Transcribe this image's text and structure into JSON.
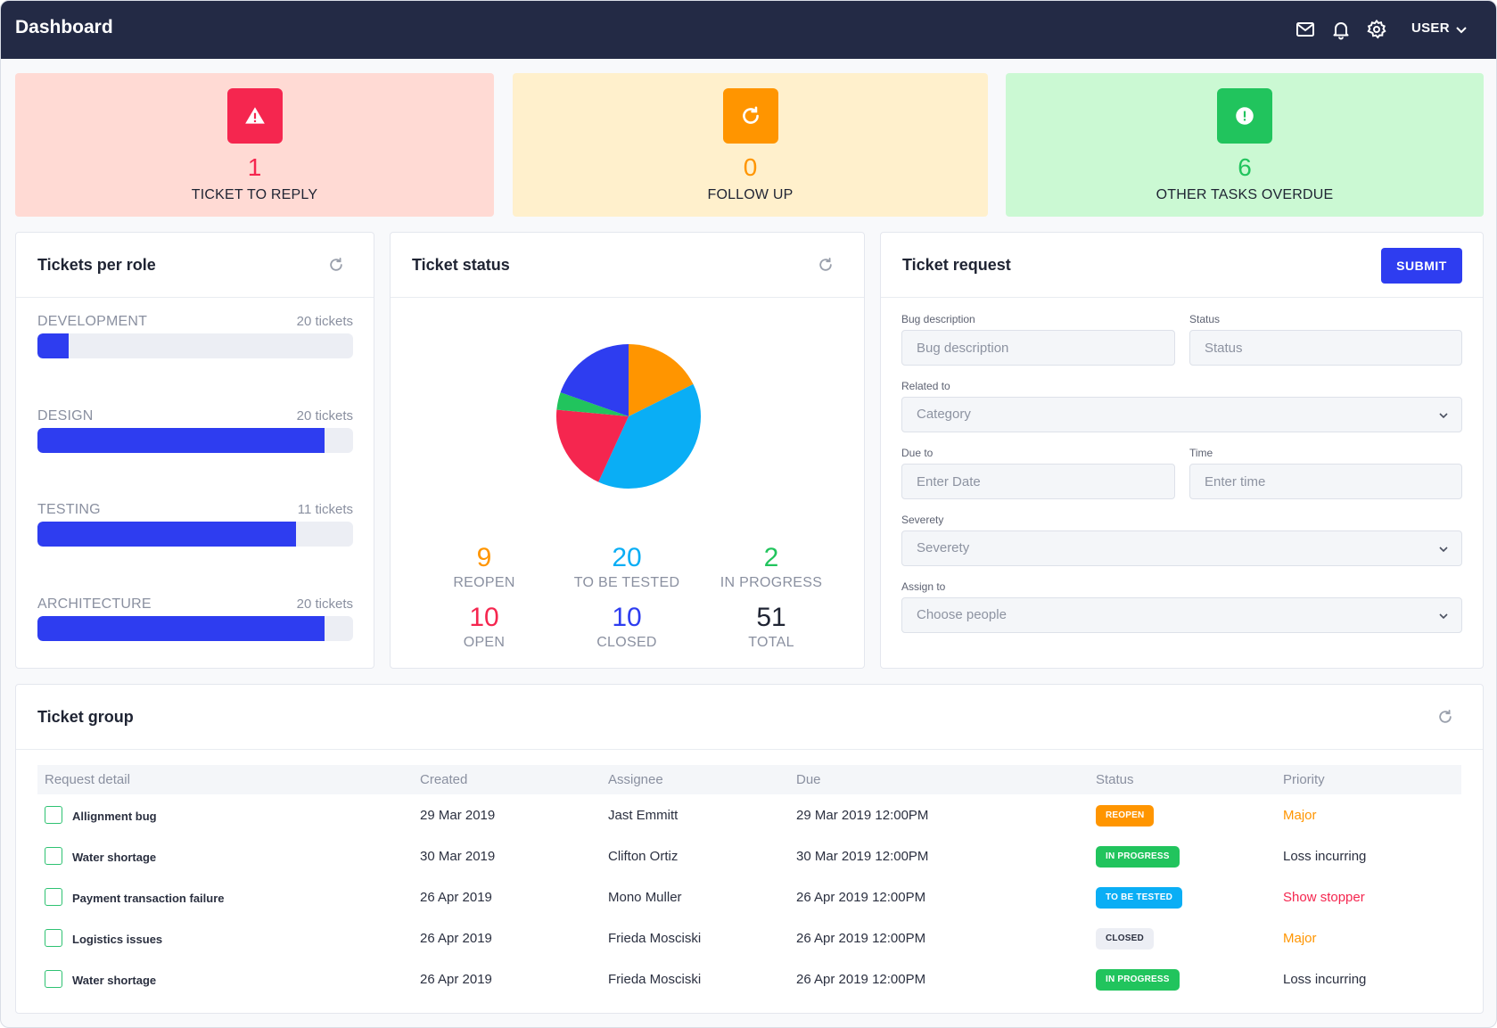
{
  "header": {
    "title": "Dashboard",
    "user_label": "USER"
  },
  "stats": [
    {
      "value": "1",
      "label": "TICKET TO REPLY",
      "icon": "warning-icon",
      "bg": "#ffdad4",
      "accent": "#f5264f"
    },
    {
      "value": "0",
      "label": "FOLLOW UP",
      "icon": "refresh-icon",
      "bg": "#fff0cc",
      "accent": "#ff9500"
    },
    {
      "value": "6",
      "label": "OTHER TASKS OVERDUE",
      "icon": "alert-circle-icon",
      "bg": "#cbf9d3",
      "accent": "#21c45d"
    }
  ],
  "roles_panel": {
    "title": "Tickets per role",
    "items": [
      {
        "name": "DEVELOPMENT",
        "count_label": "20 tickets",
        "fraction": 0.1
      },
      {
        "name": "DESIGN",
        "count_label": "20 tickets",
        "fraction": 0.91
      },
      {
        "name": "TESTING",
        "count_label": "11 tickets",
        "fraction": 0.82
      },
      {
        "name": "ARCHITECTURE",
        "count_label": "20 tickets",
        "fraction": 0.91
      }
    ]
  },
  "status_panel": {
    "title": "Ticket status",
    "items": [
      {
        "value": "9",
        "label": "REOPEN",
        "color": "#ff9500"
      },
      {
        "value": "20",
        "label": "TO BE TESTED",
        "color": "#0aaef5"
      },
      {
        "value": "2",
        "label": "IN PROGRESS",
        "color": "#21c45d"
      },
      {
        "value": "10",
        "label": "OPEN",
        "color": "#f5264f"
      },
      {
        "value": "10",
        "label": "CLOSED",
        "color": "#2e3df0"
      },
      {
        "value": "51",
        "label": "TOTAL",
        "color": "#1f2433"
      }
    ]
  },
  "chart_data": {
    "type": "pie",
    "slices": [
      {
        "label": "REOPEN",
        "value": 9,
        "color": "#ff9500"
      },
      {
        "label": "TO BE TESTED",
        "value": 20,
        "color": "#0aaef5"
      },
      {
        "label": "OPEN",
        "value": 10,
        "color": "#f5264f"
      },
      {
        "label": "IN PROGRESS",
        "value": 2,
        "color": "#21c45d"
      },
      {
        "label": "CLOSED",
        "value": 10,
        "color": "#2e3df0"
      }
    ]
  },
  "request_panel": {
    "title": "Ticket request",
    "submit_label": "SUBMIT",
    "fields": {
      "bug_label": "Bug description",
      "bug_placeholder": "Bug description",
      "status_label": "Status",
      "status_placeholder": "Status",
      "related_label": "Related to",
      "related_value": "Category",
      "due_label": "Due to",
      "due_placeholder": "Enter Date",
      "time_label": "Time",
      "time_placeholder": "Enter time",
      "severity_label": "Severety",
      "severity_value": "Severety",
      "assign_label": "Assign to",
      "assign_value": "Choose people"
    }
  },
  "group_panel": {
    "title": "Ticket group",
    "columns": [
      "Request detail",
      "Created",
      "Assignee",
      "Due",
      "Status",
      "Priority"
    ],
    "rows": [
      {
        "request": "Allignment bug",
        "created": "29 Mar 2019",
        "assignee": "Jast Emmitt",
        "due": "29 Mar 2019 12:00PM",
        "status": "REOPEN",
        "status_color": "#ff9500",
        "status_text_color": "#ffffff",
        "priority": "Major",
        "priority_color": "#ff9500"
      },
      {
        "request": "Water shortage",
        "created": "30 Mar 2019",
        "assignee": "Clifton Ortiz",
        "due": "30 Mar 2019 12:00PM",
        "status": "IN PROGRESS",
        "status_color": "#21c45d",
        "status_text_color": "#ffffff",
        "priority": "Loss incurring",
        "priority_color": "#2b3040"
      },
      {
        "request": "Payment transaction failure",
        "created": "26 Apr 2019",
        "assignee": "Mono Muller",
        "due": "26 Apr 2019 12:00PM",
        "status": "TO BE TESTED",
        "status_color": "#0aaef5",
        "status_text_color": "#ffffff",
        "priority": "Show stopper",
        "priority_color": "#f5264f"
      },
      {
        "request": "Logistics issues",
        "created": "26 Apr 2019",
        "assignee": "Frieda Mosciski",
        "due": "26 Apr 2019 12:00PM",
        "status": "CLOSED",
        "status_color": "#eceef4",
        "status_text_color": "#2b3040",
        "priority": "Major",
        "priority_color": "#ff9500"
      },
      {
        "request": "Water shortage",
        "created": "26 Apr 2019",
        "assignee": "Frieda Mosciski",
        "due": "26 Apr 2019 12:00PM",
        "status": "IN PROGRESS",
        "status_color": "#21c45d",
        "status_text_color": "#ffffff",
        "priority": "Loss incurring",
        "priority_color": "#2b3040"
      }
    ]
  }
}
